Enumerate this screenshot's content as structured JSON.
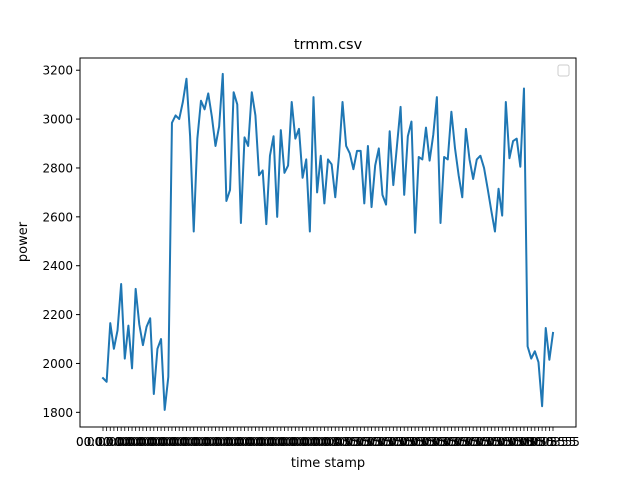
{
  "chart_data": {
    "type": "line",
    "title": "trmm.csv",
    "xlabel": "time stamp",
    "ylabel": "power",
    "ylim": [
      1740,
      3250
    ],
    "yticks": [
      1800,
      2000,
      2200,
      2400,
      2600,
      2800,
      3000,
      3200
    ],
    "grid": false,
    "legend": "top-right, empty",
    "line_color": "#1f77b4",
    "x_tick_text_left": "00:00:00",
    "x_tick_text_right": "00:03:55",
    "series": [
      {
        "values": [
          1940,
          1925,
          2165,
          2060,
          2135,
          2325,
          2020,
          2155,
          1980,
          2305,
          2160,
          2075,
          2150,
          2185,
          1875,
          2060,
          2100,
          1810,
          1945,
          2985,
          3015,
          3000,
          3070,
          3165,
          2930,
          2540,
          2920,
          3075,
          3040,
          3105,
          3010,
          2890,
          2970,
          3185,
          2665,
          2710,
          3110,
          3060,
          2575,
          2925,
          2890,
          3110,
          3015,
          2770,
          2790,
          2570,
          2850,
          2930,
          2600,
          2955,
          2780,
          2810,
          3070,
          2920,
          2960,
          2760,
          2835,
          2540,
          3090,
          2700,
          2850,
          2655,
          2835,
          2815,
          2680,
          2845,
          3070,
          2890,
          2860,
          2795,
          2870,
          2870,
          2655,
          2890,
          2640,
          2810,
          2880,
          2690,
          2650,
          2950,
          2730,
          2890,
          3050,
          2690,
          2930,
          2990,
          2535,
          2845,
          2835,
          2965,
          2830,
          2935,
          3090,
          2575,
          2845,
          2835,
          3030,
          2880,
          2770,
          2680,
          2960,
          2835,
          2755,
          2835,
          2850,
          2800,
          2715,
          2625,
          2540,
          2715,
          2605,
          3070,
          2840,
          2910,
          2920,
          2805,
          3125,
          2070,
          2020,
          2050,
          2005,
          1825,
          2145,
          2015,
          2125
        ]
      }
    ]
  }
}
